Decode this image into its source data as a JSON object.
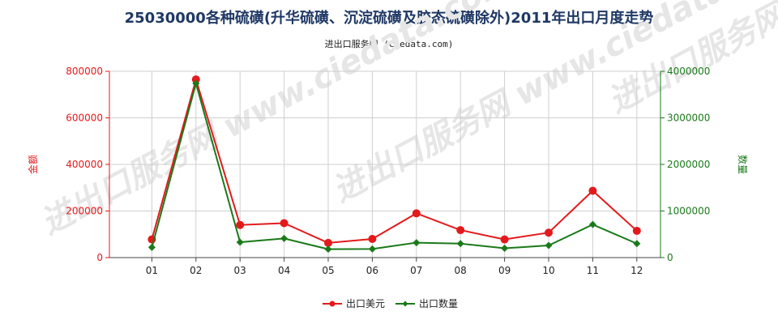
{
  "page": {
    "title": "25030000各种硫磺(升华硫磺、沉淀硫磺及胶态硫磺除外)2011年出口月度走势",
    "subtitle": "进出口服务网 (ciedata.com)",
    "watermark": "进出口服务网 www.ciedata.com"
  },
  "chart_data": {
    "type": "line",
    "categories": [
      "01",
      "02",
      "03",
      "04",
      "05",
      "06",
      "07",
      "08",
      "09",
      "10",
      "11",
      "12"
    ],
    "y_left": {
      "label": "金额",
      "ylim": [
        0,
        800000
      ],
      "ticks": [
        0,
        200000,
        400000,
        600000,
        800000
      ],
      "tick_labels": [
        "0",
        "200000",
        "400000",
        "600000",
        "800000"
      ],
      "color": "#e31a1c"
    },
    "y_right": {
      "label": "数量",
      "ylim": [
        0,
        4000000
      ],
      "ticks": [
        0,
        1000000,
        2000000,
        3000000,
        4000000
      ],
      "tick_labels": [
        "0",
        "1000000",
        "2000000",
        "3000000",
        "4000000"
      ],
      "color": "#1a7a1a"
    },
    "grid": true,
    "legend_position": "bottom-center",
    "series": [
      {
        "name": "出口美元",
        "axis": "left",
        "color": "#e31a1c",
        "marker": "circle",
        "values": [
          78000,
          765000,
          140000,
          148000,
          63000,
          80000,
          190000,
          118000,
          78000,
          107000,
          287000,
          115000
        ]
      },
      {
        "name": "出口数量",
        "axis": "right",
        "color": "#1a7a1a",
        "marker": "diamond",
        "values": [
          220000,
          3740000,
          330000,
          410000,
          180000,
          185000,
          320000,
          300000,
          200000,
          260000,
          710000,
          300000
        ]
      }
    ]
  }
}
